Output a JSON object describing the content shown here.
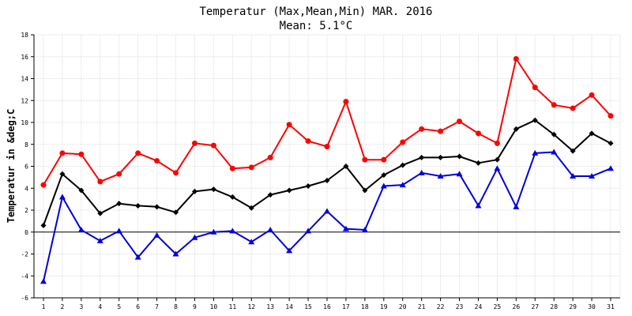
{
  "chart_data": {
    "type": "line",
    "title": "Temperatur (Max,Mean,Min) MAR. 2016",
    "subtitle": "Mean: 5.1°C",
    "ylabel": "Temperatur in &deg;C",
    "xlabel": "",
    "x": [
      1,
      2,
      3,
      4,
      5,
      6,
      7,
      8,
      9,
      10,
      11,
      12,
      13,
      14,
      15,
      16,
      17,
      18,
      19,
      20,
      21,
      22,
      23,
      24,
      25,
      26,
      27,
      28,
      29,
      30,
      31
    ],
    "ylim": [
      -6,
      18
    ],
    "yticks": [
      -6,
      -4,
      -2,
      0,
      2,
      4,
      6,
      8,
      10,
      12,
      14,
      16,
      18
    ],
    "grid": true,
    "series": [
      {
        "key": "max",
        "color": "#ff0000",
        "marker": "circle",
        "values": [
          4.3,
          7.2,
          7.1,
          4.6,
          5.3,
          7.2,
          6.5,
          5.4,
          8.1,
          7.9,
          5.8,
          5.9,
          6.8,
          9.8,
          8.3,
          7.8,
          11.9,
          6.6,
          6.6,
          8.2,
          9.4,
          9.2,
          10.1,
          9.0,
          8.1,
          15.8,
          13.2,
          11.6,
          11.3,
          12.5,
          10.6
        ]
      },
      {
        "key": "mean",
        "color": "#000000",
        "marker": "diamond",
        "values": [
          0.6,
          5.3,
          3.8,
          1.7,
          2.6,
          2.4,
          2.3,
          1.8,
          3.7,
          3.9,
          3.2,
          2.2,
          3.4,
          3.8,
          4.2,
          4.7,
          6.0,
          3.8,
          5.2,
          6.1,
          6.8,
          6.8,
          6.9,
          6.3,
          6.6,
          9.4,
          10.2,
          8.9,
          7.4,
          9.0,
          8.1
        ]
      },
      {
        "key": "min",
        "color": "#0000dd",
        "marker": "triangle",
        "values": [
          -4.5,
          3.2,
          0.2,
          -0.8,
          0.1,
          -2.3,
          -0.3,
          -2.0,
          -0.5,
          0.0,
          0.1,
          -0.9,
          0.2,
          -1.7,
          0.1,
          1.9,
          0.3,
          0.2,
          4.2,
          4.3,
          5.4,
          5.1,
          5.3,
          2.4,
          5.8,
          2.3,
          7.2,
          7.3,
          5.1,
          5.1,
          5.8
        ]
      }
    ]
  }
}
